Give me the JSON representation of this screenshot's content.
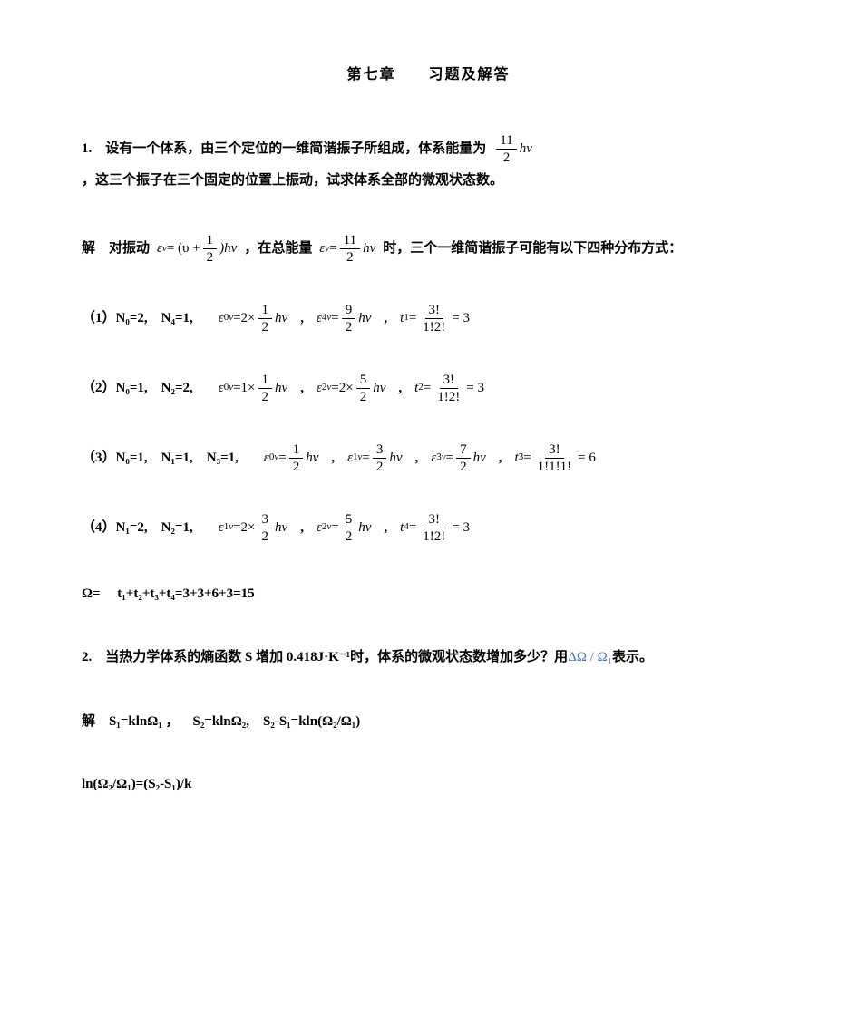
{
  "page": {
    "background_color": "#ffffff",
    "text_color": "#000000",
    "accent_color": "#4472c4",
    "font_body": "SimSun",
    "font_math": "Times New Roman",
    "font_size_body": 15,
    "font_size_title": 16
  },
  "title": "第七章  习题及解答",
  "q1": {
    "prefix": "1. 设有一个体系，由三个定位的一维简谐振子所组成，体系能量为",
    "energy_frac": {
      "num": "11",
      "den": "2"
    },
    "energy_tail": "hν",
    "suffix": "，这三个振子在三个固定的位置上振动，试求体系全部的微观状态数。"
  },
  "sol_intro": {
    "prefix": "解 对振动",
    "eq1_lhs": "ε",
    "eq1_sup": "ν",
    "eq1_eq": " = (υ + ",
    "eq1_frac": {
      "num": "1",
      "den": "2"
    },
    "eq1_tail": ")hν",
    "mid": "，在总能量",
    "eq2_lhs": "ε",
    "eq2_sup": "ν",
    "eq2_eq": " = ",
    "eq2_frac": {
      "num": "11",
      "den": "2"
    },
    "eq2_tail": "hν",
    "suffix": "时，三个一维简谐振子可能有以下四种分布方式："
  },
  "case1": {
    "label": "（1）N",
    "n_parts": "₀=2, N₄=1,",
    "e0_coef": "2×",
    "e0_frac": {
      "num": "1",
      "den": "2"
    },
    "e4_frac": {
      "num": "9",
      "den": "2"
    },
    "t_frac": {
      "num": "3!",
      "den": "1!2!"
    },
    "t_result": "= 3"
  },
  "case2": {
    "label": "（2）N",
    "n_parts": "₀=1, N₂=2,",
    "e0_coef": "1×",
    "e0_frac": {
      "num": "1",
      "den": "2"
    },
    "e2_coef": "2×",
    "e2_frac": {
      "num": "5",
      "den": "2"
    },
    "t_frac": {
      "num": "3!",
      "den": "1!2!"
    },
    "t_result": "= 3"
  },
  "case3": {
    "label": "（3）N",
    "n_parts": "₀=1, N₁=1, N₃=1,",
    "e0_frac": {
      "num": "1",
      "den": "2"
    },
    "e1_frac": {
      "num": "3",
      "den": "2"
    },
    "e3_frac": {
      "num": "7",
      "den": "2"
    },
    "t_frac": {
      "num": "3!",
      "den": "1!1!1!"
    },
    "t_result": "= 6"
  },
  "case4": {
    "label": "（4）N",
    "n_parts": "₁=2, N₂=1,",
    "e1_coef": "2×",
    "e1_frac": {
      "num": "3",
      "den": "2"
    },
    "e2_frac": {
      "num": "5",
      "den": "2"
    },
    "t_frac": {
      "num": "3!",
      "den": "1!2!"
    },
    "t_result": "= 3"
  },
  "omega_sum": "Ω=  t₁+t₂+t₃+t₄=3+3+6+3=15",
  "q2": {
    "prefix": "2. 当热力学体系的熵函数 S 增加 0.418J·K⁻¹时，体系的微观状态数增加多少？用",
    "expr": "ΔΩ / Ω₁",
    "suffix": "表示。"
  },
  "sol2_line1": "解 S₁=klnΩ₁ ， S₂=klnΩ₂, S₂-S₁=kln(Ω₂/Ω₁)",
  "sol2_line2": "ln(Ω₂/Ω₁)=(S₂-S₁)/k"
}
